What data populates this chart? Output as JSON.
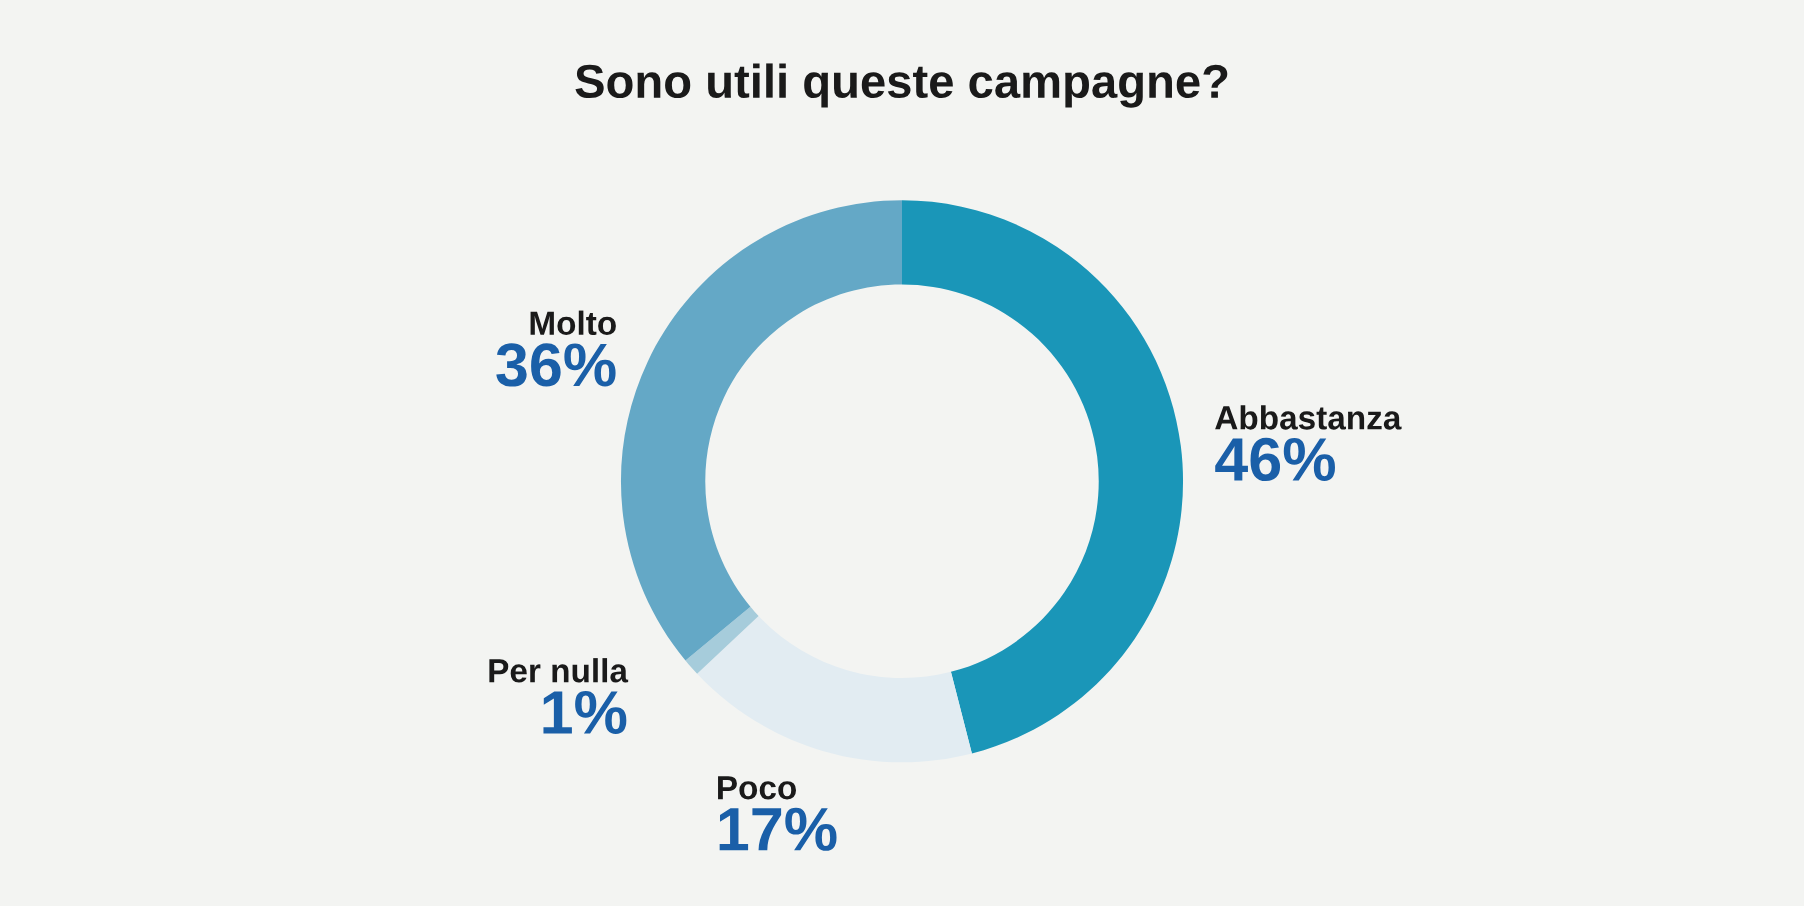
{
  "chart_data": {
    "type": "donut",
    "title": "Sono utili queste campagne?",
    "categories": [
      "Abbastanza",
      "Poco",
      "Per nulla",
      "Molto"
    ],
    "values": [
      46,
      17,
      1,
      36
    ],
    "value_labels": [
      "46%",
      "17%",
      "1%",
      "36%"
    ],
    "colors": [
      "#1a96b8",
      "#e2ecf2",
      "#a6ccdb",
      "#64a8c6"
    ],
    "legend": false
  }
}
